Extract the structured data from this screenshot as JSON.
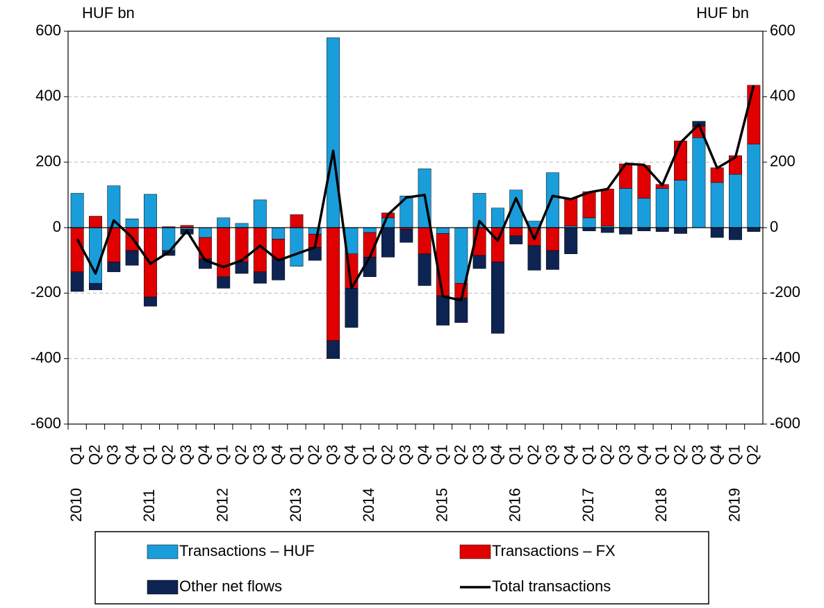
{
  "chart_data": {
    "type": "bar",
    "y_label": "HUF bn",
    "y2_label": "HUF bn",
    "categories": [
      "Q1",
      "Q2",
      "Q3",
      "Q4",
      "Q1",
      "Q2",
      "Q3",
      "Q4",
      "Q1",
      "Q2",
      "Q3",
      "Q4",
      "Q1",
      "Q2",
      "Q3",
      "Q4",
      "Q1",
      "Q2",
      "Q3",
      "Q4",
      "Q1",
      "Q2",
      "Q3",
      "Q4",
      "Q1",
      "Q2",
      "Q3",
      "Q4",
      "Q1",
      "Q2",
      "Q3",
      "Q4",
      "Q1",
      "Q2",
      "Q3",
      "Q4",
      "Q1",
      "Q2"
    ],
    "year_labels": [
      "2010",
      null,
      null,
      null,
      "2011",
      null,
      null,
      null,
      "2012",
      null,
      null,
      null,
      "2013",
      null,
      null,
      null,
      "2014",
      null,
      null,
      null,
      "2015",
      null,
      null,
      null,
      "2016",
      null,
      null,
      null,
      "2017",
      null,
      null,
      null,
      "2018",
      null,
      null,
      null,
      "2019",
      null
    ],
    "series": [
      {
        "name": "Transactions – HUF",
        "color": "#1a9ddb",
        "values": [
          105,
          -170,
          128,
          27,
          102,
          -70,
          -5,
          -30,
          30,
          13,
          85,
          -35,
          -118,
          -20,
          580,
          -80,
          -15,
          30,
          97,
          180,
          -18,
          -170,
          105,
          60,
          115,
          20,
          168,
          5,
          30,
          5,
          120,
          90,
          120,
          145,
          275,
          138,
          163,
          255
        ]
      },
      {
        "name": "Transactions – FX",
        "color": "#e00000",
        "values": [
          -135,
          35,
          -105,
          -70,
          -212,
          3,
          7,
          -65,
          -150,
          -105,
          -135,
          -60,
          40,
          -40,
          -345,
          -105,
          -75,
          15,
          -5,
          -80,
          -190,
          -45,
          -85,
          -105,
          -25,
          -55,
          -70,
          85,
          80,
          113,
          75,
          100,
          12,
          120,
          35,
          45,
          57,
          180
        ]
      },
      {
        "name": "Other net flows",
        "color": "#0d2452",
        "values": [
          -60,
          -20,
          -30,
          -45,
          -28,
          -15,
          -15,
          -30,
          -35,
          -35,
          -35,
          -65,
          0,
          -40,
          -55,
          -120,
          -60,
          -90,
          -40,
          -97,
          -90,
          -75,
          -40,
          -218,
          -25,
          -75,
          -58,
          -80,
          -10,
          -15,
          -20,
          -10,
          -12,
          -18,
          15,
          -30,
          -37,
          -12
        ]
      },
      {
        "name": "Total transactions",
        "type": "line",
        "color": "#000000",
        "values": [
          -35,
          -140,
          22,
          -30,
          -110,
          -75,
          -10,
          -100,
          -120,
          -100,
          -55,
          -100,
          -80,
          -60,
          235,
          -185,
          -90,
          40,
          92,
          100,
          -210,
          -222,
          20,
          -40,
          90,
          -35,
          97,
          87,
          108,
          118,
          195,
          192,
          130,
          260,
          315,
          182,
          215,
          435
        ]
      }
    ],
    "ylim": [
      -600,
      600
    ],
    "yticks": [
      -600,
      -400,
      -200,
      0,
      200,
      400,
      600
    ],
    "y2lim": [
      -600,
      600
    ],
    "y2ticks": [
      -600,
      -400,
      -200,
      0,
      200,
      400,
      600
    ],
    "grid": true
  }
}
